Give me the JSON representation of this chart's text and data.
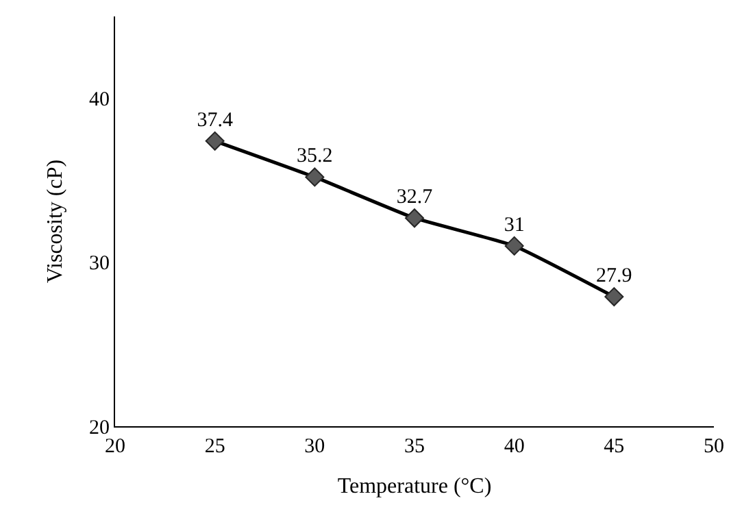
{
  "chart_data": {
    "type": "line",
    "xlabel": "Temperature (°C)",
    "ylabel": "Viscosity (cP)",
    "x": [
      25,
      30,
      35,
      40,
      45
    ],
    "series": [
      {
        "color": "#000000",
        "values": [
          37.4,
          35.2,
          32.7,
          31,
          27.9
        ]
      }
    ],
    "xlim": [
      20,
      50
    ],
    "xticks": [
      20,
      25,
      30,
      35,
      40,
      45,
      50
    ],
    "ylim": [
      20,
      45
    ],
    "yticks": [
      20,
      30,
      40
    ],
    "legend": false,
    "marker": "diamond",
    "line_style": "solid",
    "data_labels": true
  }
}
